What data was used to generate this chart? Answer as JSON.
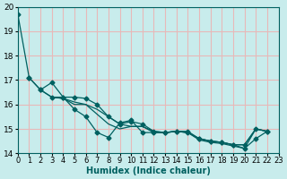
{
  "xlabel": "Humidex (Indice chaleur)",
  "ylabel": "",
  "bg_color": "#c8ecec",
  "grid_color": "#e8b8b8",
  "line_color": "#006060",
  "xlim": [
    0,
    23
  ],
  "ylim": [
    14,
    20
  ],
  "yticks": [
    14,
    15,
    16,
    17,
    18,
    19,
    20
  ],
  "xticks": [
    0,
    1,
    2,
    3,
    4,
    5,
    6,
    7,
    8,
    9,
    10,
    11,
    12,
    13,
    14,
    15,
    16,
    17,
    18,
    19,
    20,
    21,
    22,
    23
  ],
  "curves": [
    {
      "x": [
        0,
        1,
        2,
        3,
        4,
        5,
        6,
        7,
        8,
        9,
        10,
        11,
        12,
        13,
        14,
        15,
        16,
        17,
        18,
        19,
        20,
        21,
        22
      ],
      "y": [
        19.7,
        17.1,
        16.6,
        16.3,
        16.3,
        15.8,
        15.5,
        14.85,
        14.65,
        15.25,
        15.35,
        14.85,
        14.85,
        14.85,
        14.9,
        14.85,
        14.6,
        14.5,
        14.45,
        14.35,
        14.2,
        14.6,
        14.9
      ],
      "marker": true
    },
    {
      "x": [
        1,
        2,
        3,
        4,
        5,
        6,
        7,
        8,
        9,
        10,
        11,
        12,
        13,
        14,
        15,
        16,
        17,
        18,
        19,
        20,
        21,
        22
      ],
      "y": [
        17.1,
        16.6,
        16.9,
        16.3,
        16.3,
        16.25,
        16.0,
        15.5,
        15.2,
        15.3,
        15.2,
        14.9,
        14.85,
        14.9,
        14.9,
        14.6,
        14.5,
        14.45,
        14.35,
        14.35,
        15.0,
        14.9
      ],
      "marker": true
    },
    {
      "x": [
        2,
        3,
        4,
        5,
        6,
        7,
        8,
        9,
        10,
        11,
        12,
        13,
        14,
        15,
        16,
        17,
        18,
        19,
        20,
        21,
        22
      ],
      "y": [
        16.6,
        16.3,
        16.25,
        16.1,
        16.0,
        15.8,
        15.5,
        15.2,
        15.1,
        15.1,
        14.9,
        14.85,
        14.9,
        14.85,
        14.6,
        14.5,
        14.45,
        14.35,
        14.35,
        15.0,
        14.9
      ],
      "marker": false
    },
    {
      "x": [
        3,
        4,
        5,
        6,
        7,
        8,
        9,
        10,
        11,
        12,
        13,
        14,
        15,
        16,
        17,
        18,
        19,
        20,
        21,
        22
      ],
      "y": [
        16.3,
        16.25,
        16.0,
        16.0,
        15.6,
        15.2,
        15.0,
        15.1,
        15.1,
        14.85,
        14.85,
        14.9,
        14.85,
        14.55,
        14.45,
        14.4,
        14.3,
        14.2,
        15.0,
        14.9
      ],
      "marker": false
    }
  ]
}
